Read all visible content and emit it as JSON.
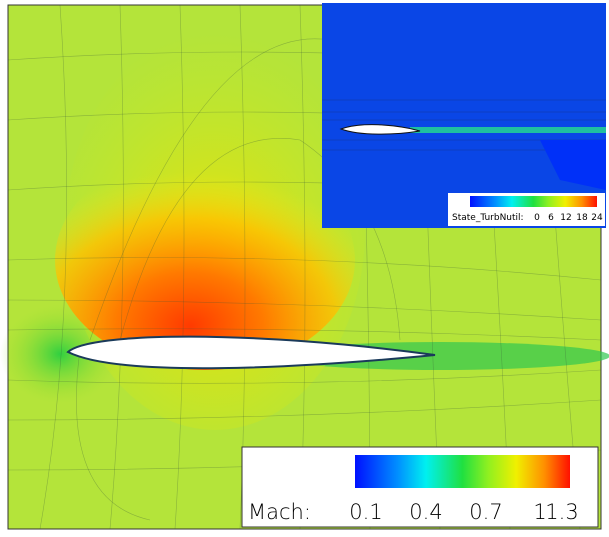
{
  "main_colorbar": {
    "label": "Mach:",
    "ticks": [
      0.1,
      0.4,
      0.7,
      1,
      1.3
    ]
  },
  "inset_colorbar": {
    "label": "State_TurbNutil:",
    "ticks": [
      0,
      6,
      12,
      18,
      24
    ]
  }
}
